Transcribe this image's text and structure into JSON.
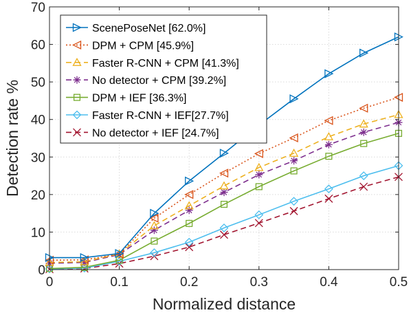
{
  "chart_data": {
    "type": "line",
    "xlabel": "Normalized distance",
    "ylabel": "Detection rate %",
    "xlim": [
      0,
      0.5
    ],
    "ylim": [
      0,
      70
    ],
    "xticks": [
      0,
      0.1,
      0.2,
      0.3,
      0.4,
      0.5
    ],
    "xtick_labels": [
      "0",
      "0.1",
      "0.2",
      "0.3",
      "0.4",
      "0.5"
    ],
    "yticks": [
      0,
      10,
      20,
      30,
      40,
      50,
      60,
      70
    ],
    "ytick_labels": [
      "0",
      "10",
      "20",
      "30",
      "40",
      "50",
      "60",
      "70"
    ],
    "grid": "dotted",
    "legend_position": "top-left",
    "x": [
      0,
      0.05,
      0.1,
      0.15,
      0.2,
      0.25,
      0.3,
      0.35,
      0.4,
      0.45,
      0.5
    ],
    "series": [
      {
        "name": "ScenePoseNet [62.0%]",
        "color": "#0072BD",
        "line": "solid",
        "marker": "triangle-right",
        "values": [
          3.2,
          3.2,
          4.3,
          15.0,
          23.6,
          31.0,
          38.5,
          45.5,
          52.2,
          57.7,
          62.0
        ]
      },
      {
        "name": "DPM + CPM [45.9%]",
        "color": "#D95319",
        "line": "dotted",
        "marker": "triangle-left",
        "values": [
          2.5,
          2.6,
          4.1,
          13.7,
          20.0,
          25.7,
          30.9,
          35.1,
          39.7,
          43.0,
          45.9
        ]
      },
      {
        "name": "Faster R-CNN + CPM [41.3%]",
        "color": "#EDB120",
        "line": "dashed",
        "marker": "triangle-up",
        "values": [
          1.9,
          2.1,
          4.2,
          11.7,
          17.0,
          22.3,
          27.2,
          31.0,
          35.4,
          38.8,
          41.3
        ]
      },
      {
        "name": "No detector + CPM [39.2%]",
        "color": "#7E2F8E",
        "line": "dashed",
        "marker": "star",
        "values": [
          1.7,
          1.9,
          4.0,
          10.5,
          15.8,
          20.6,
          25.3,
          29.0,
          33.3,
          36.6,
          39.2
        ]
      },
      {
        "name": "DPM + IEF [36.3%]",
        "color": "#77AC30",
        "line": "solid",
        "marker": "square",
        "values": [
          0.3,
          0.6,
          2.5,
          7.6,
          12.3,
          17.4,
          22.1,
          26.3,
          30.2,
          33.6,
          36.3
        ]
      },
      {
        "name": "Faster R-CNN + IEF[27.7%]",
        "color": "#4DBEEE",
        "line": "solid",
        "marker": "diamond",
        "values": [
          0.2,
          0.4,
          2.2,
          4.5,
          7.3,
          11.1,
          14.6,
          18.2,
          21.5,
          25.0,
          27.7
        ]
      },
      {
        "name": "No detector + IEF [24.7%]",
        "color": "#A2142F",
        "line": "dashed",
        "marker": "x",
        "values": [
          0.1,
          0.3,
          1.6,
          3.6,
          6.0,
          9.3,
          12.4,
          15.6,
          18.9,
          22.1,
          24.7
        ]
      }
    ]
  }
}
